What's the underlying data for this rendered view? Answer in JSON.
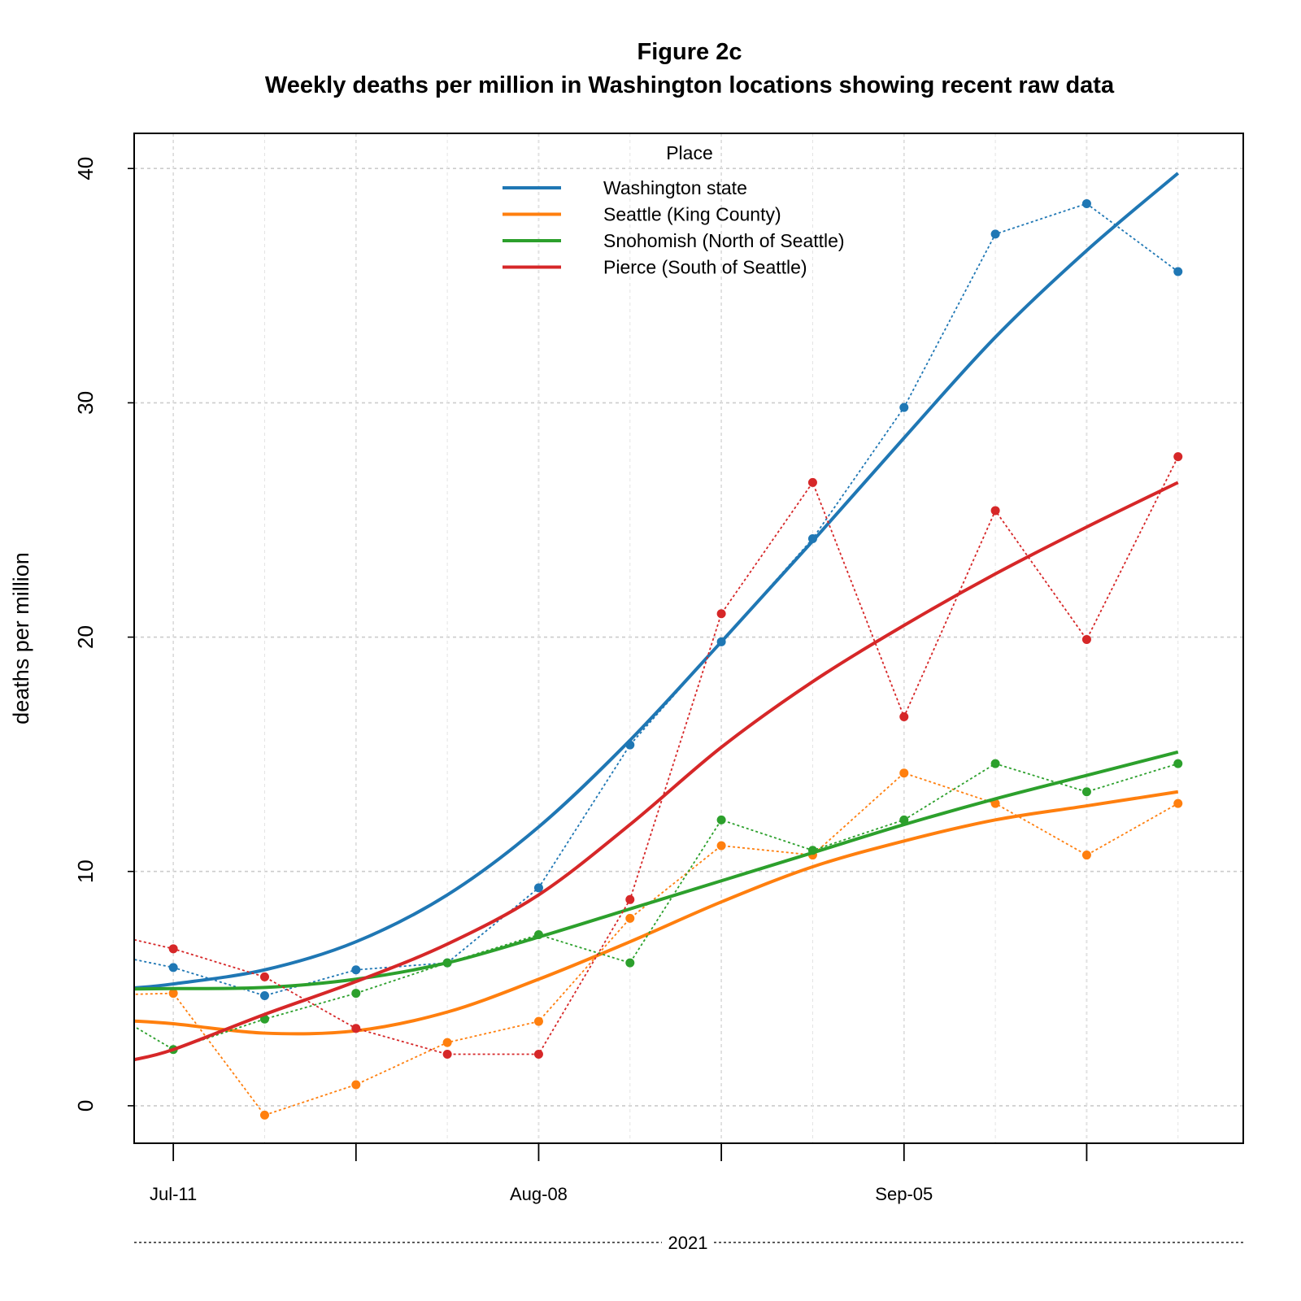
{
  "chart_data": {
    "type": "line",
    "title": "Figure 2c",
    "subtitle": "Weekly deaths per million in Washington locations showing recent raw data",
    "xlabel": "2021",
    "ylabel": "deaths per million",
    "x": [
      "2021-07-11",
      "2021-07-18",
      "2021-07-25",
      "2021-08-01",
      "2021-08-08",
      "2021-08-15",
      "2021-08-22",
      "2021-08-29",
      "2021-09-05",
      "2021-09-12",
      "2021-09-19",
      "2021-09-26"
    ],
    "xtick_labels": [
      {
        "date": "2021-07-11",
        "label": "Jul-11"
      },
      {
        "date": "2021-08-08",
        "label": "Aug-08"
      },
      {
        "date": "2021-09-05",
        "label": "Sep-05"
      }
    ],
    "xticks": [
      "2021-07-11",
      "2021-07-25",
      "2021-08-08",
      "2021-08-22",
      "2021-09-05",
      "2021-09-19"
    ],
    "xlim": [
      "2021-07-08",
      "2021-10-01"
    ],
    "ylim": [
      -1.6,
      41.5
    ],
    "yticks": [
      0,
      10,
      20,
      30,
      40
    ],
    "grid": true,
    "legend": {
      "title": "Place",
      "position": "top"
    },
    "series": [
      {
        "name": "Washington state",
        "color": "#1f77b4",
        "raw_prefix": 6.7,
        "values": [
          5.9,
          4.7,
          5.8,
          6.1,
          9.3,
          15.4,
          19.8,
          24.2,
          29.8,
          37.2,
          38.5,
          35.6
        ],
        "trend": [
          5.2,
          5.8,
          7.0,
          9.0,
          11.9,
          15.6,
          19.8,
          24.1,
          28.5,
          32.8,
          36.5,
          39.8
        ]
      },
      {
        "name": "Seattle (King County)",
        "color": "#ff7f0e",
        "raw_prefix": 4.7,
        "values": [
          4.8,
          -0.4,
          0.9,
          2.7,
          3.6,
          8.0,
          11.1,
          10.7,
          14.2,
          12.9,
          10.7,
          12.9
        ],
        "trend": [
          3.5,
          3.1,
          3.2,
          4.0,
          5.4,
          7.0,
          8.7,
          10.2,
          11.3,
          12.2,
          12.8,
          13.4
        ]
      },
      {
        "name": "Snohomish (North of Seattle)",
        "color": "#2ca02c",
        "raw_prefix": 4.7,
        "values": [
          2.4,
          3.7,
          4.8,
          6.1,
          7.3,
          6.1,
          12.2,
          10.9,
          12.2,
          14.6,
          13.4,
          14.6
        ],
        "trend": [
          5.0,
          5.05,
          5.4,
          6.1,
          7.2,
          8.4,
          9.6,
          10.8,
          12.0,
          13.1,
          14.1,
          15.1
        ]
      },
      {
        "name": "Pierce (South of Seattle)",
        "color": "#d62728",
        "raw_prefix": 7.6,
        "values": [
          6.7,
          5.5,
          3.3,
          2.2,
          2.2,
          8.8,
          21.0,
          26.6,
          16.6,
          25.4,
          19.9,
          27.7
        ],
        "trend": [
          2.4,
          3.9,
          5.3,
          6.9,
          9.0,
          12.0,
          15.3,
          18.1,
          20.5,
          22.7,
          24.7,
          26.6
        ]
      }
    ]
  }
}
